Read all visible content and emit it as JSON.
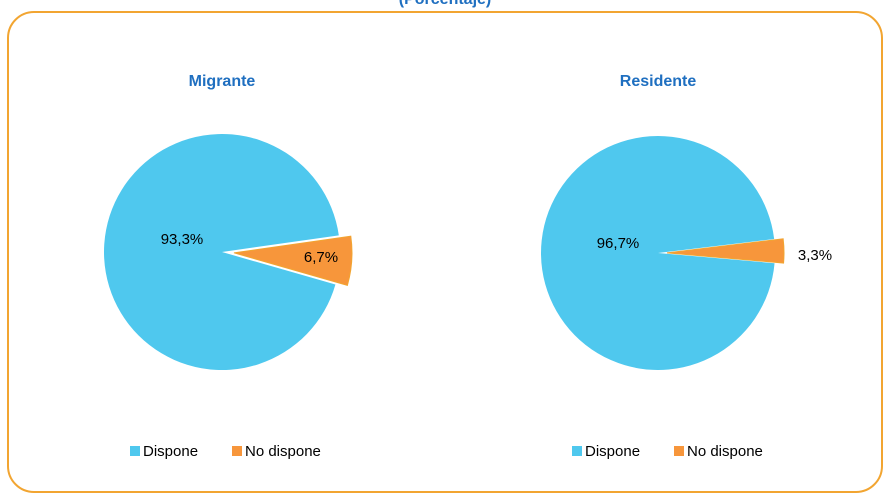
{
  "header": {
    "title": "(Porcentaje)"
  },
  "chart_data": [
    {
      "type": "pie",
      "title": "Migrante",
      "categories": [
        "Dispone",
        "No dispone"
      ],
      "values": [
        93.3,
        6.7
      ],
      "value_labels": [
        "93,3%",
        "6,7%"
      ],
      "colors": [
        "#4fc8ee",
        "#f7963b"
      ]
    },
    {
      "type": "pie",
      "title": "Residente",
      "categories": [
        "Dispone",
        "No dispone"
      ],
      "values": [
        96.7,
        3.3
      ],
      "value_labels": [
        "96,7%",
        "3,3%"
      ],
      "colors": [
        "#4fc8ee",
        "#f7963b"
      ]
    }
  ]
}
